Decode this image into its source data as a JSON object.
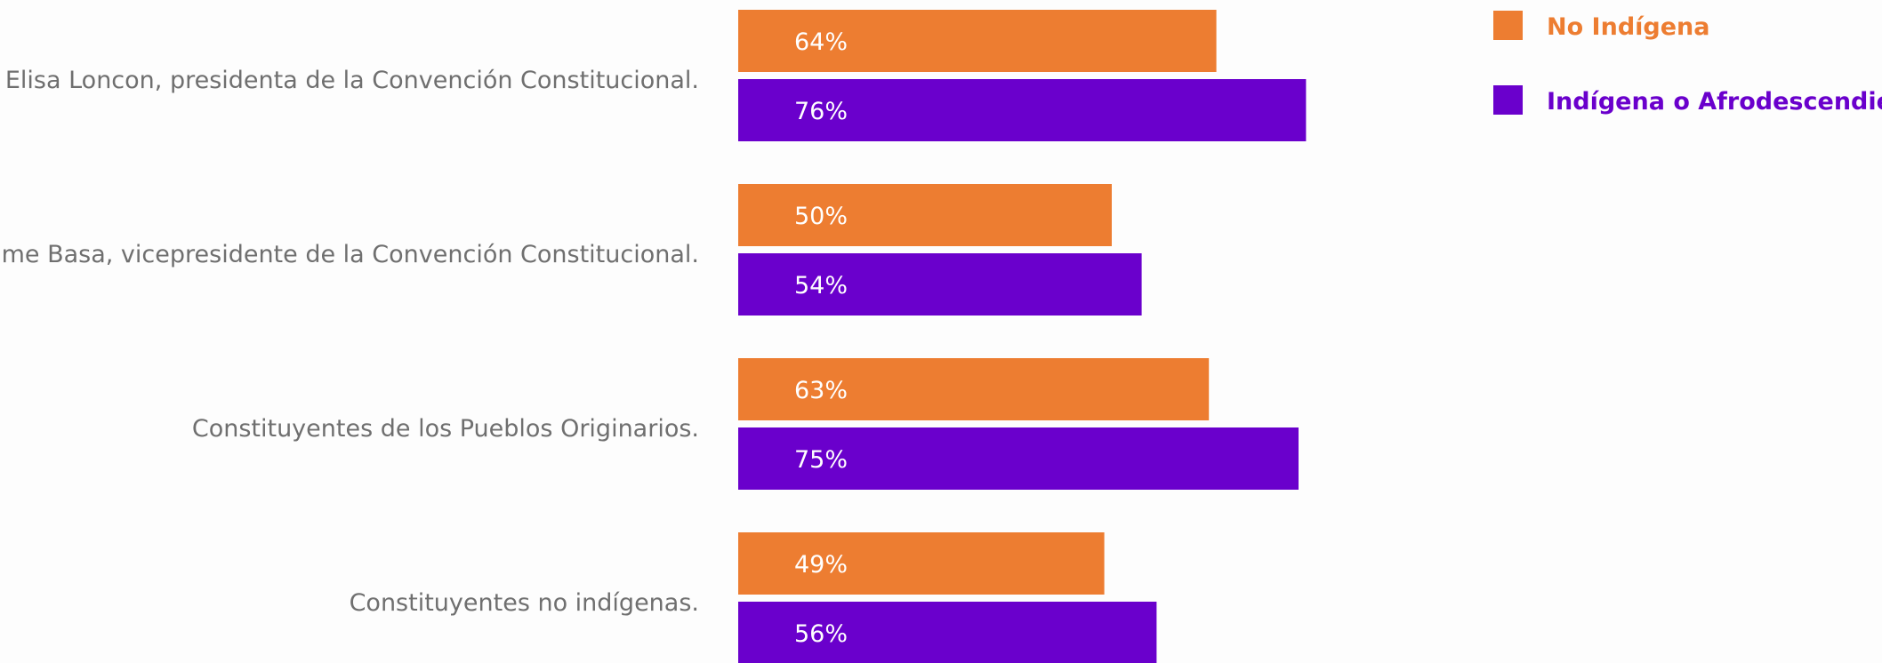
{
  "chart_data": {
    "type": "bar",
    "orientation": "horizontal",
    "categories": [
      "Elisa Loncon, presidenta de la Convención Constitucional.",
      "Jaime Basa, vicepresidente de la Convención Constitucional.",
      "Constituyentes de los Pueblos Originarios.",
      "Constituyentes no indígenas."
    ],
    "series": [
      {
        "name": "No Indígena",
        "color": "#ED7D31",
        "values": [
          64,
          50,
          63,
          49
        ],
        "labels": [
          "64%",
          "50%",
          "63%",
          "49%"
        ]
      },
      {
        "name": "Indígena o Afrodescendiente",
        "color": "#6A00CC",
        "values": [
          76,
          54,
          75,
          56
        ],
        "labels": [
          "76%",
          "54%",
          "75%",
          "56%"
        ]
      }
    ],
    "unit": "%",
    "xlim": [
      0,
      100
    ],
    "legend_position": "top-right",
    "grid": false,
    "axes_visible": false
  },
  "colors": {
    "background": "#fdfdfd",
    "category_text": "#6f6f6f",
    "value_text": "#ffffff"
  }
}
